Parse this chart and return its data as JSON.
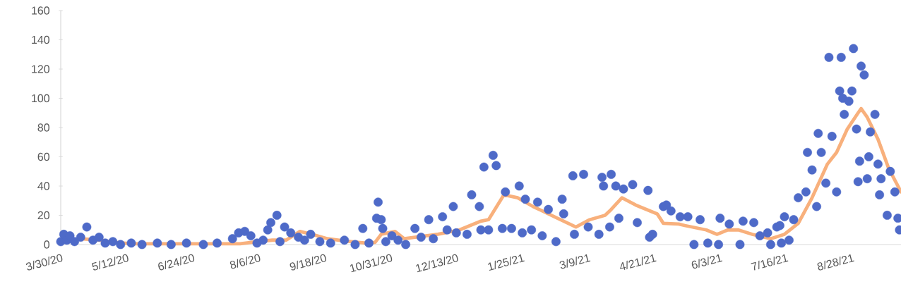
{
  "chart_data": {
    "type": "scatter",
    "xlim": [
      "2020-03-30",
      "2021-09-29"
    ],
    "xticks": [
      {
        "value": "2020-03-30",
        "label": "3/30/20"
      },
      {
        "value": "2020-05-12",
        "label": "5/12/20"
      },
      {
        "value": "2020-06-24",
        "label": "6/24/20"
      },
      {
        "value": "2020-08-06",
        "label": "8/6/20"
      },
      {
        "value": "2020-09-18",
        "label": "9/18/20"
      },
      {
        "value": "2020-10-31",
        "label": "10/31/20"
      },
      {
        "value": "2020-12-13",
        "label": "12/13/20"
      },
      {
        "value": "2021-01-25",
        "label": "1/25/21"
      },
      {
        "value": "2021-03-09",
        "label": "3/9/21"
      },
      {
        "value": "2021-04-21",
        "label": "4/21/21"
      },
      {
        "value": "2021-06-03",
        "label": "6/3/21"
      },
      {
        "value": "2021-07-16",
        "label": "7/16/21"
      },
      {
        "value": "2021-08-28",
        "label": "8/28/21"
      }
    ],
    "ylim": [
      0,
      160
    ],
    "yticks": [
      0,
      20,
      40,
      60,
      80,
      100,
      120,
      140,
      160
    ],
    "series": [
      {
        "marker": "circle",
        "color": "#4e6ac8",
        "x": [
          "2020-03-30",
          "2020-04-01",
          "2020-04-03",
          "2020-04-05",
          "2020-04-08",
          "2020-04-12",
          "2020-04-16",
          "2020-04-20",
          "2020-04-24",
          "2020-04-28",
          "2020-05-03",
          "2020-05-08",
          "2020-05-15",
          "2020-05-22",
          "2020-06-01",
          "2020-06-10",
          "2020-06-20",
          "2020-07-01",
          "2020-07-10",
          "2020-07-20",
          "2020-07-24",
          "2020-07-28",
          "2020-08-01",
          "2020-08-05",
          "2020-08-09",
          "2020-08-12",
          "2020-08-14",
          "2020-08-18",
          "2020-08-20",
          "2020-08-23",
          "2020-08-27",
          "2020-09-01",
          "2020-09-05",
          "2020-09-09",
          "2020-09-15",
          "2020-09-22",
          "2020-10-01",
          "2020-10-08",
          "2020-10-13",
          "2020-10-17",
          "2020-10-22",
          "2020-10-23",
          "2020-10-25",
          "2020-10-26",
          "2020-10-28",
          "2020-11-01",
          "2020-11-05",
          "2020-11-10",
          "2020-11-16",
          "2020-11-20",
          "2020-11-25",
          "2020-11-28",
          "2020-12-04",
          "2020-12-07",
          "2020-12-11",
          "2020-12-13",
          "2020-12-20",
          "2020-12-23",
          "2020-12-28",
          "2020-12-29",
          "2020-12-31",
          "2021-01-03",
          "2021-01-06",
          "2021-01-08",
          "2021-01-12",
          "2021-01-14",
          "2021-01-18",
          "2021-01-23",
          "2021-01-25",
          "2021-01-27",
          "2021-01-31",
          "2021-02-04",
          "2021-02-07",
          "2021-02-11",
          "2021-02-16",
          "2021-02-20",
          "2021-02-21",
          "2021-02-27",
          "2021-02-28",
          "2021-03-06",
          "2021-03-09",
          "2021-03-16",
          "2021-03-18",
          "2021-03-19",
          "2021-03-23",
          "2021-03-24",
          "2021-03-27",
          "2021-03-29",
          "2021-04-01",
          "2021-04-07",
          "2021-04-10",
          "2021-04-17",
          "2021-04-18",
          "2021-04-20",
          "2021-04-27",
          "2021-04-29",
          "2021-05-02",
          "2021-05-08",
          "2021-05-13",
          "2021-05-17",
          "2021-05-21",
          "2021-05-26",
          "2021-06-02",
          "2021-06-03",
          "2021-06-09",
          "2021-06-16",
          "2021-06-18",
          "2021-06-25",
          "2021-06-29",
          "2021-07-04",
          "2021-07-06",
          "2021-07-10",
          "2021-07-12",
          "2021-07-13",
          "2021-07-15",
          "2021-07-18",
          "2021-07-21",
          "2021-07-24",
          "2021-07-29",
          "2021-07-30",
          "2021-08-02",
          "2021-08-05",
          "2021-08-06",
          "2021-08-08",
          "2021-08-11",
          "2021-08-13",
          "2021-08-15",
          "2021-08-18",
          "2021-08-20",
          "2021-08-21",
          "2021-08-22",
          "2021-08-23",
          "2021-08-26",
          "2021-08-28",
          "2021-08-29",
          "2021-08-31",
          "2021-09-01",
          "2021-09-02",
          "2021-09-03",
          "2021-09-05",
          "2021-09-07",
          "2021-09-08",
          "2021-09-09",
          "2021-09-12",
          "2021-09-14",
          "2021-09-15",
          "2021-09-16",
          "2021-09-20",
          "2021-09-22",
          "2021-09-25",
          "2021-09-27",
          "2021-09-28"
        ],
        "values": [
          2,
          7,
          3,
          6,
          2,
          5,
          12,
          3,
          5,
          1,
          2,
          0,
          1,
          0,
          1,
          0,
          1,
          0,
          1,
          4,
          8,
          9,
          6,
          1,
          3,
          10,
          15,
          20,
          2,
          12,
          8,
          5,
          3,
          7,
          2,
          1,
          3,
          0,
          11,
          1,
          18,
          29,
          17,
          11,
          2,
          6,
          3,
          0,
          11,
          5,
          17,
          4,
          19,
          10,
          26,
          8,
          7,
          34,
          26,
          10,
          53,
          10,
          61,
          54,
          11,
          36,
          11,
          40,
          8,
          31,
          10,
          29,
          6,
          24,
          2,
          31,
          21,
          47,
          7,
          48,
          12,
          7,
          46,
          40,
          12,
          48,
          40,
          18,
          38,
          41,
          15,
          37,
          5,
          7,
          26,
          27,
          23,
          19,
          19,
          0,
          17,
          1,
          0,
          18,
          14,
          0,
          16,
          15,
          6,
          8,
          0,
          12,
          13,
          1,
          19,
          3,
          17,
          32,
          36,
          63,
          51,
          26,
          76,
          63,
          42,
          128,
          74,
          36,
          105,
          128,
          100,
          89,
          98,
          105,
          134,
          79,
          43,
          57,
          122,
          116,
          45,
          60,
          77,
          89,
          55,
          34,
          45,
          20,
          50,
          36,
          18,
          10
        ]
      },
      {
        "type": "line",
        "color": "#f8b07c",
        "x": [
          "2020-04-11",
          "2020-04-25",
          "2020-05-05",
          "2020-05-15",
          "2020-06-01",
          "2020-07-01",
          "2020-07-25",
          "2020-08-05",
          "2020-08-15",
          "2020-08-24",
          "2020-09-02",
          "2020-09-10",
          "2020-09-20",
          "2020-10-01",
          "2020-10-15",
          "2020-10-21",
          "2020-10-25",
          "2020-11-03",
          "2020-11-09",
          "2020-12-01",
          "2020-12-15",
          "2020-12-29",
          "2021-01-03",
          "2021-01-13",
          "2021-01-22",
          "2021-02-01",
          "2021-02-15",
          "2021-03-01",
          "2021-03-10",
          "2021-03-20",
          "2021-03-24",
          "2021-03-31",
          "2021-04-09",
          "2021-04-23",
          "2021-04-27",
          "2021-05-07",
          "2021-05-11",
          "2021-05-25",
          "2021-06-01",
          "2021-06-08",
          "2021-06-15",
          "2021-06-24",
          "2021-07-06",
          "2021-07-15",
          "2021-07-24",
          "2021-08-02",
          "2021-08-12",
          "2021-08-18",
          "2021-08-25",
          "2021-09-01",
          "2021-09-03",
          "2021-09-07",
          "2021-09-14",
          "2021-09-21",
          "2021-09-29"
        ],
        "values": [
          4,
          3,
          1.5,
          0.5,
          0.5,
          0.5,
          0.5,
          2,
          3,
          3,
          9,
          7,
          4,
          2.5,
          1,
          1.5,
          7,
          9,
          4,
          7,
          10,
          16,
          17,
          34,
          32,
          26,
          19,
          12,
          17,
          20,
          24,
          32,
          27,
          21,
          14.5,
          14,
          13,
          10,
          7,
          10,
          10,
          7,
          4,
          7,
          14.5,
          32,
          55,
          63,
          79,
          90,
          93,
          87,
          72,
          52,
          36
        ]
      }
    ]
  }
}
